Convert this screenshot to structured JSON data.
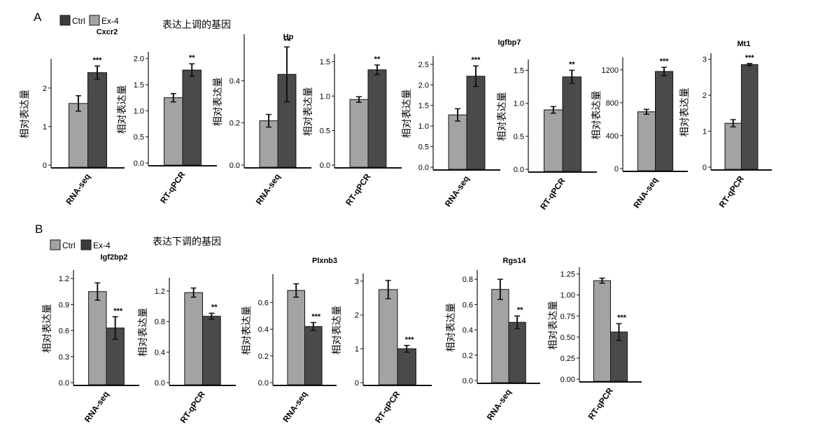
{
  "panel_a": {
    "letter": "A",
    "title": "表达上调的基因",
    "legend": [
      {
        "label": "Ctrl",
        "color": "#3d3d3d"
      },
      {
        "label": "Ex-4",
        "color": "#a3a3a3"
      }
    ]
  },
  "panel_b": {
    "letter": "B",
    "title": "表达下调的基因",
    "legend": [
      {
        "label": "Ctrl",
        "color": "#a3a3a3"
      },
      {
        "label": "Ex-4",
        "color": "#3d3d3d"
      }
    ]
  },
  "colors": {
    "ctrl": "#a3a3a3",
    "ex4": "#4a4a4a"
  },
  "chart_data": [
    {
      "type": "bar",
      "panel": "A",
      "gene": "Cxcr2",
      "xlabel": "RNA-seq",
      "ylabel": "相对表达量",
      "categories": [
        "Ctrl",
        "Ex-4"
      ],
      "values": [
        1.6,
        2.4
      ],
      "errors": [
        0.2,
        0.17
      ],
      "significance": "***",
      "yticks": [
        "0",
        "1",
        "2"
      ],
      "ylim": [
        0,
        2.65
      ]
    },
    {
      "type": "bar",
      "panel": "A",
      "gene": "",
      "xlabel": "RT-qPCR",
      "ylabel": "相对表达量",
      "categories": [
        "Ctrl",
        "Ex-4"
      ],
      "values": [
        1.25,
        1.78
      ],
      "errors": [
        0.08,
        0.12
      ],
      "significance": "**",
      "yticks": [
        "0.0",
        "0.5",
        "1.0",
        "1.5",
        "2.0"
      ],
      "ylim": [
        0,
        2.05
      ]
    },
    {
      "type": "bar",
      "panel": "A",
      "gene": "Hp",
      "xlabel": "RNA-seq",
      "ylabel": "相对表达量",
      "categories": [
        "Ctrl",
        "Ex-4"
      ],
      "values": [
        0.21,
        0.43
      ],
      "errors": [
        0.03,
        0.13
      ],
      "significance": "**",
      "yticks": [
        "0.0",
        "0.2",
        "0.4"
      ],
      "ylim": [
        0,
        0.6
      ]
    },
    {
      "type": "bar",
      "panel": "A",
      "gene": "",
      "xlabel": "RT-qPCR",
      "ylabel": "相对表达量",
      "categories": [
        "Ctrl",
        "Ex-4"
      ],
      "values": [
        0.95,
        1.38
      ],
      "errors": [
        0.04,
        0.07
      ],
      "significance": "**",
      "yticks": [
        "0.0",
        "0.5",
        "1.0",
        "1.5"
      ],
      "ylim": [
        0,
        1.55
      ]
    },
    {
      "type": "bar",
      "panel": "A",
      "gene": "Igfbp7",
      "xlabel": "RNA-seq",
      "ylabel": "相对表达量",
      "categories": [
        "Ctrl",
        "Ex-4"
      ],
      "values": [
        1.27,
        2.21
      ],
      "errors": [
        0.15,
        0.25
      ],
      "significance": "***",
      "yticks": [
        "0.0",
        "0.5",
        "1.0",
        "1.5",
        "2.0",
        "2.5"
      ],
      "ylim": [
        0,
        2.6
      ]
    },
    {
      "type": "bar",
      "panel": "A",
      "gene": "",
      "xlabel": "RT-qPCR",
      "ylabel": "相对表达量",
      "categories": [
        "Ctrl",
        "Ex-4"
      ],
      "values": [
        0.9,
        1.4
      ],
      "errors": [
        0.05,
        0.1
      ],
      "significance": "**",
      "yticks": [
        "0.0",
        "0.5",
        "1.0",
        "1.5"
      ],
      "ylim": [
        0,
        1.6
      ]
    },
    {
      "type": "bar",
      "panel": "A",
      "gene": "",
      "xlabel": "RNA-seq",
      "ylabel": "相对表达量",
      "categories": [
        "Ctrl",
        "Ex-4"
      ],
      "values": [
        690,
        1180
      ],
      "errors": [
        30,
        50
      ],
      "significance": "***",
      "yticks": [
        "0",
        "400",
        "800",
        "1200"
      ],
      "ylim": [
        0,
        1300
      ]
    },
    {
      "type": "bar",
      "panel": "A",
      "gene": "Mt1",
      "xlabel": "RT-qPCR",
      "ylabel": "相对表达量",
      "categories": [
        "Ctrl",
        "Ex-4"
      ],
      "values": [
        1.22,
        2.85
      ],
      "errors": [
        0.1,
        0.03
      ],
      "significance": "***",
      "yticks": [
        "0",
        "1",
        "2",
        "3"
      ],
      "ylim": [
        0,
        3.05
      ]
    },
    {
      "type": "bar",
      "panel": "B",
      "gene": "Igf2bp2",
      "xlabel": "RNA-seq",
      "ylabel": "相对表达量",
      "categories": [
        "Ctrl",
        "Ex-4"
      ],
      "values": [
        1.05,
        0.63
      ],
      "errors": [
        0.1,
        0.13
      ],
      "significance": "***",
      "yticks": [
        "0.0",
        "0.3",
        "0.6",
        "0.9",
        "1.2"
      ],
      "ylim": [
        0,
        1.25
      ]
    },
    {
      "type": "bar",
      "panel": "B",
      "gene": "",
      "xlabel": "RT-qPCR",
      "ylabel": "相对表达量",
      "categories": [
        "Ctrl",
        "Ex-4"
      ],
      "values": [
        1.18,
        0.87
      ],
      "errors": [
        0.06,
        0.04
      ],
      "significance": "**",
      "yticks": [
        "0.0",
        "0.4",
        "0.8",
        "1.2"
      ],
      "ylim": [
        0,
        1.32
      ]
    },
    {
      "type": "bar",
      "panel": "B",
      "gene": "Plxnb3",
      "xlabel": "RNA-seq",
      "ylabel": "相对表达量",
      "categories": [
        "Ctrl",
        "Ex-4"
      ],
      "values": [
        0.69,
        0.42
      ],
      "errors": [
        0.05,
        0.03
      ],
      "significance": "***",
      "yticks": [
        "0.0",
        "0.2",
        "0.4",
        "0.6"
      ],
      "ylim": [
        0,
        0.78
      ]
    },
    {
      "type": "bar",
      "panel": "B",
      "gene": "",
      "xlabel": "RT-qPCR",
      "ylabel": "相对表达量",
      "categories": [
        "Ctrl",
        "Ex-4"
      ],
      "values": [
        2.75,
        1.0
      ],
      "errors": [
        0.27,
        0.1
      ],
      "significance": "***",
      "yticks": [
        "0",
        "1",
        "2",
        "3"
      ],
      "ylim": [
        0,
        3.1
      ]
    },
    {
      "type": "bar",
      "panel": "B",
      "gene": "Rgs14",
      "xlabel": "RNA-seq",
      "ylabel": "相对表达量",
      "categories": [
        "Ctrl",
        "Ex-4"
      ],
      "values": [
        0.72,
        0.46
      ],
      "errors": [
        0.08,
        0.05
      ],
      "significance": "**",
      "yticks": [
        "0.0",
        "0.2",
        "0.4",
        "0.6",
        "0.8"
      ],
      "ylim": [
        0,
        0.84
      ]
    },
    {
      "type": "bar",
      "panel": "B",
      "gene": "",
      "xlabel": "RT-qPCR",
      "ylabel": "相对表达量",
      "categories": [
        "Ctrl",
        "Ex-4"
      ],
      "values": [
        1.17,
        0.56
      ],
      "errors": [
        0.03,
        0.1
      ],
      "significance": "***",
      "yticks": [
        "0.00",
        "0.25",
        "0.50",
        "0.75",
        "1.00",
        "1.25"
      ],
      "ylim": [
        0,
        1.28
      ]
    }
  ]
}
